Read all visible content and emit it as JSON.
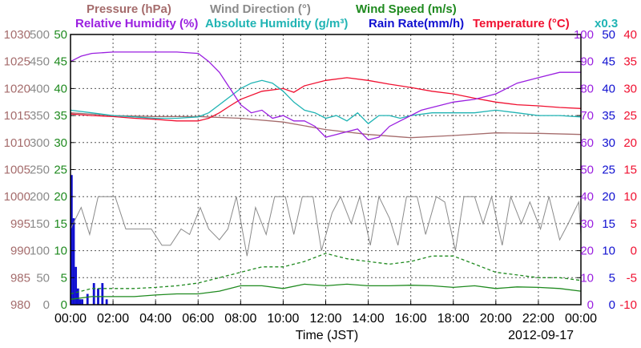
{
  "chart_data": {
    "type": "line",
    "legend": {
      "row1": [
        {
          "key": "pressure",
          "label": "Pressure (hPa)",
          "color": "#a56c6c"
        },
        {
          "key": "wind_dir",
          "label": "Wind Direction (°)",
          "color": "#8a8a8a"
        },
        {
          "key": "wind_speed",
          "label": "Wind Speed (m/s)",
          "color": "#1f8a1f"
        }
      ],
      "row2": [
        {
          "key": "rh",
          "label": "Relative Humidity (%)",
          "color": "#9a1fe0"
        },
        {
          "key": "ah",
          "label": "Absolute Humidity (g/m³)",
          "color": "#20b4b4"
        },
        {
          "key": "rain",
          "label": "Rain Rate(mm/h)",
          "color": "#1010d0"
        },
        {
          "key": "temp",
          "label": "Temperature (°C)",
          "color": "#f01030"
        }
      ],
      "ah_multiplier": "x0.3"
    },
    "xlabel": "Time (JST)",
    "date": "2012-09-17",
    "x_ticks": [
      "00:00",
      "02:00",
      "04:00",
      "06:00",
      "08:00",
      "10:00",
      "12:00",
      "14:00",
      "16:00",
      "18:00",
      "20:00",
      "22:00",
      "00:00"
    ],
    "axes": {
      "pressure": {
        "ticks": [
          "1030",
          "1025",
          "1020",
          "1015",
          "1010",
          "1005",
          "1000",
          "995",
          "990",
          "985",
          "980"
        ],
        "ylim": [
          980,
          1030
        ]
      },
      "wind_dir": {
        "ticks": [
          "500",
          "450",
          "400",
          "350",
          "300",
          "250",
          "200",
          "150",
          "100",
          "50",
          "0"
        ],
        "ylim": [
          0,
          500
        ]
      },
      "wind_speed": {
        "ticks": [
          "50",
          "45",
          "40",
          "35",
          "30",
          "25",
          "20",
          "15",
          "10",
          "5",
          "0"
        ],
        "ylim": [
          0,
          50
        ]
      },
      "rh": {
        "ticks": [
          "100",
          "90",
          "80",
          "70",
          "60",
          "50",
          "40",
          "30",
          "20",
          "10",
          "0"
        ],
        "ylim": [
          0,
          100
        ]
      },
      "rain": {
        "ticks": [
          "50",
          "45",
          "40",
          "35",
          "30",
          "25",
          "20",
          "15",
          "10",
          "5",
          "0"
        ],
        "ylim": [
          0,
          50
        ]
      },
      "temp": {
        "ticks": [
          "40",
          "35",
          "30",
          "25",
          "20",
          "15",
          "10",
          "5",
          "0",
          "-5",
          "-10"
        ],
        "ylim": [
          -10,
          40
        ]
      }
    },
    "x_unit": "hours",
    "series": [
      {
        "key": "pressure",
        "name": "Pressure (hPa)",
        "color": "#a56c6c",
        "x": [
          0,
          2,
          4,
          6,
          8,
          10,
          12,
          14,
          16,
          18,
          20,
          22,
          24
        ],
        "y": [
          1015.5,
          1015.0,
          1014.8,
          1014.8,
          1014.5,
          1013.8,
          1012.4,
          1011.5,
          1010.9,
          1011.3,
          1011.8,
          1011.7,
          1011.5
        ]
      },
      {
        "key": "temp",
        "name": "Temperature (°C)",
        "color": "#f01030",
        "x": [
          0,
          1,
          2,
          3,
          4,
          5,
          6,
          6.5,
          7,
          7.5,
          8,
          9,
          10,
          10.5,
          11,
          12,
          13,
          14,
          15,
          16,
          17,
          18,
          19,
          20,
          21,
          22,
          23,
          24
        ],
        "y": [
          25.3,
          25.0,
          24.8,
          24.5,
          24.3,
          24.0,
          24.0,
          24.5,
          25.5,
          26.8,
          28.0,
          29.5,
          30.0,
          29.3,
          30.5,
          31.5,
          32.0,
          31.5,
          30.8,
          30.2,
          29.5,
          29.0,
          28.2,
          27.5,
          27.0,
          26.8,
          26.5,
          26.3
        ]
      },
      {
        "key": "ah",
        "name": "Absolute Humidity (g/m³)",
        "color": "#20b4b4",
        "x": [
          0,
          1,
          2,
          3,
          4,
          5,
          6,
          6.5,
          7,
          7.5,
          8,
          8.5,
          9,
          9.5,
          10,
          10.5,
          11,
          11.5,
          12,
          12.5,
          13,
          13.5,
          14,
          14.5,
          15,
          15.5,
          16,
          17,
          18,
          19,
          20,
          21,
          22,
          23,
          24
        ],
        "y": [
          72,
          71,
          70,
          69.5,
          69,
          69,
          69.5,
          71,
          74,
          77,
          80,
          82,
          83,
          82,
          79,
          75,
          72,
          71,
          69,
          70,
          68,
          71,
          67,
          70,
          70,
          69,
          70,
          71,
          71,
          71,
          72,
          71,
          70,
          70,
          69.5
        ]
      },
      {
        "key": "rh",
        "name": "Relative Humidity (%)",
        "color": "#9a1fe0",
        "x": [
          0,
          0.5,
          1,
          2,
          3,
          4,
          5,
          6,
          6.5,
          7,
          7.5,
          8,
          8.5,
          9,
          9.5,
          10,
          10.5,
          11,
          11.5,
          12,
          12.5,
          13,
          13.5,
          14,
          14.5,
          15,
          15.5,
          16,
          16.5,
          17,
          18,
          19,
          20,
          20.5,
          21,
          22,
          23,
          24
        ],
        "y": [
          90,
          92,
          93,
          93.5,
          93.5,
          93.5,
          93.5,
          93,
          90,
          86,
          80,
          74,
          71,
          72,
          69,
          70,
          68,
          68,
          66,
          62,
          63,
          64,
          65,
          61,
          62,
          66,
          68,
          70,
          72,
          73,
          75,
          76,
          78,
          80,
          82,
          84,
          86,
          86
        ]
      },
      {
        "key": "wind_dir",
        "name": "Wind Direction (°)",
        "color": "#8a8a8a",
        "x": [
          0,
          0.5,
          0.9,
          1.3,
          1.6,
          2.1,
          2.6,
          2.9,
          3.4,
          3.8,
          4.3,
          4.7,
          5.2,
          5.6,
          6.1,
          6.5,
          7,
          7.4,
          7.8,
          8.3,
          8.7,
          9.2,
          9.6,
          10.1,
          10.5,
          10.9,
          11.4,
          11.8,
          12.3,
          12.7,
          13.2,
          13.6,
          14.1,
          14.5,
          15,
          15.4,
          15.8,
          16.3,
          16.7,
          17.2,
          17.6,
          18.1,
          18.5,
          19,
          19.4,
          19.8,
          20.3,
          20.7,
          21.2,
          21.6,
          22.1,
          22.5,
          23,
          23.4,
          23.9,
          24
        ],
        "y": [
          140,
          180,
          130,
          200,
          200,
          200,
          140,
          140,
          140,
          140,
          110,
          110,
          140,
          130,
          180,
          140,
          120,
          140,
          200,
          90,
          180,
          130,
          200,
          200,
          130,
          200,
          200,
          100,
          170,
          200,
          150,
          200,
          110,
          200,
          160,
          110,
          200,
          200,
          130,
          200,
          190,
          100,
          200,
          200,
          150,
          200,
          110,
          200,
          150,
          190,
          140,
          200,
          120,
          150,
          190,
          130
        ]
      },
      {
        "key": "wind_speed",
        "name": "Wind Speed (m/s)",
        "color": "#1f8a1f",
        "x": [
          0,
          1,
          2,
          3,
          4,
          5,
          6,
          7,
          8,
          9,
          10,
          11,
          12,
          13,
          14,
          15,
          16,
          17,
          18,
          19,
          20,
          21,
          22,
          23,
          24
        ],
        "y": [
          1,
          1.5,
          1.5,
          1.5,
          1.8,
          2,
          2,
          2.5,
          3.5,
          3.5,
          3,
          3.8,
          3.5,
          3.8,
          3.5,
          3.5,
          3.6,
          3.5,
          3.2,
          3.5,
          3,
          3.3,
          3.2,
          3,
          2.5
        ]
      },
      {
        "key": "wind_speed_gust",
        "name": "Wind Speed (m/s)",
        "color": "#1f8a1f",
        "x": [
          0,
          1,
          2,
          3,
          4,
          5,
          6,
          7,
          8,
          9,
          10,
          11,
          12,
          13,
          14,
          15,
          16,
          17,
          18,
          19,
          20,
          21,
          22,
          23,
          24
        ],
        "y": [
          2,
          3,
          3,
          3,
          3.2,
          3.5,
          4,
          5,
          6,
          7,
          7,
          8,
          9.5,
          8.5,
          8,
          7.5,
          8,
          9,
          9,
          7.5,
          6,
          5.5,
          5,
          5,
          4.5
        ]
      }
    ],
    "rain_rate": {
      "name": "Rain Rate(mm/h)",
      "x": [
        0.05,
        0.15,
        0.25,
        0.35,
        0.45,
        0.55,
        0.8,
        1.1,
        1.3,
        1.5,
        1.7
      ],
      "y": [
        24,
        16,
        7,
        3,
        1,
        1,
        2,
        4,
        3,
        4,
        1
      ]
    }
  }
}
